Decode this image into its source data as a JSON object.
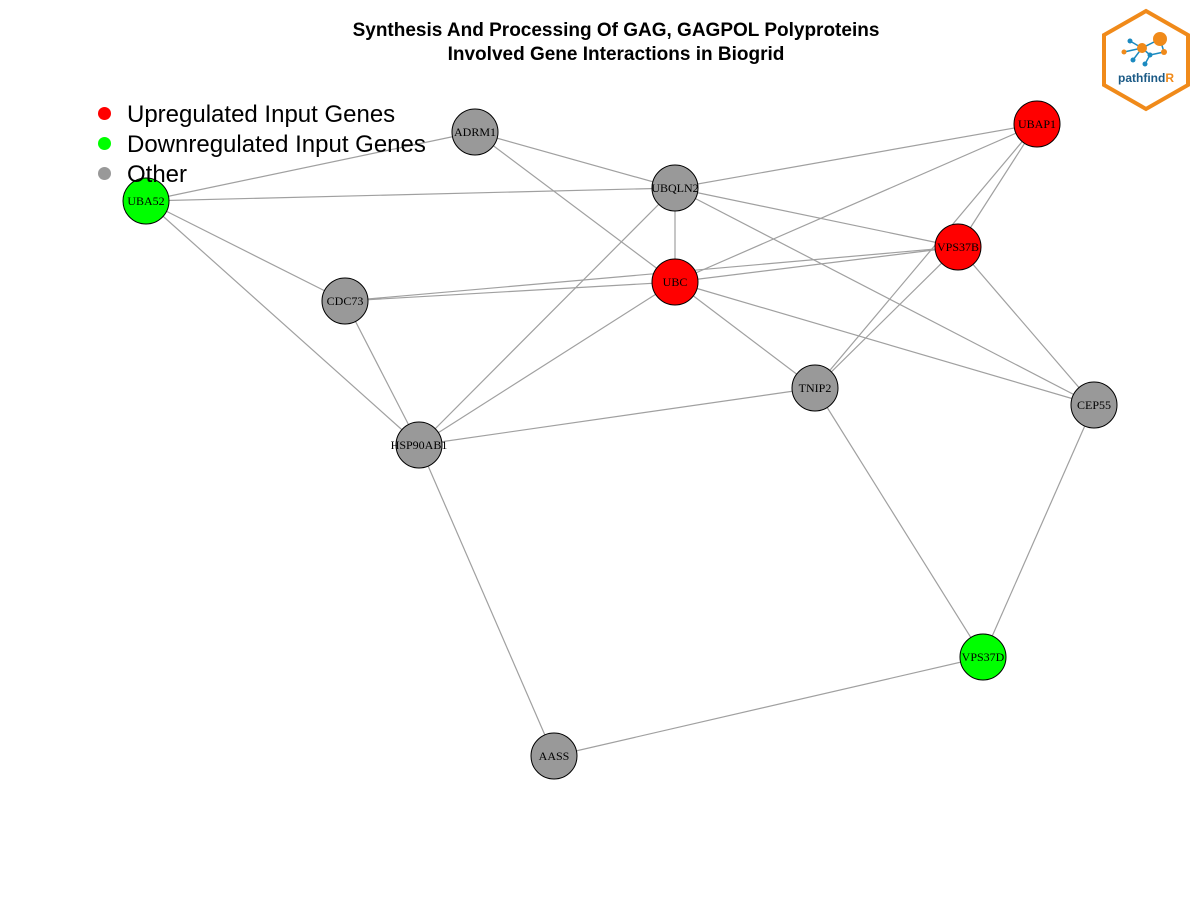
{
  "title": {
    "line1": "Synthesis And Processing Of GAG, GAGPOL Polyproteins",
    "line2": "Involved Gene Interactions in Biogrid"
  },
  "legend": [
    {
      "label": "Upregulated Input Genes",
      "color": "#ff0000"
    },
    {
      "label": "Downregulated Input Genes",
      "color": "#00ff00"
    },
    {
      "label": "Other",
      "color": "#999999"
    }
  ],
  "logo": {
    "text_main": "pathfind",
    "text_accent": "R",
    "border_color": "#f08a1a",
    "text_color": "#1b5a86"
  },
  "colors": {
    "up": "#ff0000",
    "down": "#00ff00",
    "other": "#999999",
    "edge": "#a0a0a0"
  },
  "nodes": [
    {
      "id": "ADRM1",
      "label": "ADRM1",
      "group": "other"
    },
    {
      "id": "UBAP1",
      "label": "UBAP1",
      "group": "up"
    },
    {
      "id": "UBA52",
      "label": "UBA52",
      "group": "down"
    },
    {
      "id": "UBQLN2",
      "label": "UBQLN2",
      "group": "other"
    },
    {
      "id": "VPS37B",
      "label": "VPS37B",
      "group": "up"
    },
    {
      "id": "UBC",
      "label": "UBC",
      "group": "up"
    },
    {
      "id": "CDC73",
      "label": "CDC73",
      "group": "other"
    },
    {
      "id": "TNIP2",
      "label": "TNIP2",
      "group": "other"
    },
    {
      "id": "CEP55",
      "label": "CEP55",
      "group": "other"
    },
    {
      "id": "HSP90AB1",
      "label": "HSP90AB1",
      "group": "other"
    },
    {
      "id": "VPS37D",
      "label": "VPS37D",
      "group": "down"
    },
    {
      "id": "AASS",
      "label": "AASS",
      "group": "other"
    }
  ],
  "edges": [
    [
      "ADRM1",
      "UBA52"
    ],
    [
      "ADRM1",
      "UBQLN2"
    ],
    [
      "ADRM1",
      "UBC"
    ],
    [
      "UBA52",
      "UBQLN2"
    ],
    [
      "UBA52",
      "CDC73"
    ],
    [
      "UBA52",
      "HSP90AB1"
    ],
    [
      "UBQLN2",
      "UBAP1"
    ],
    [
      "UBQLN2",
      "UBC"
    ],
    [
      "UBQLN2",
      "VPS37B"
    ],
    [
      "UBQLN2",
      "CEP55"
    ],
    [
      "UBQLN2",
      "HSP90AB1"
    ],
    [
      "UBAP1",
      "UBC"
    ],
    [
      "UBAP1",
      "VPS37B"
    ],
    [
      "UBAP1",
      "TNIP2"
    ],
    [
      "VPS37B",
      "UBC"
    ],
    [
      "VPS37B",
      "CDC73"
    ],
    [
      "VPS37B",
      "TNIP2"
    ],
    [
      "VPS37B",
      "CEP55"
    ],
    [
      "UBC",
      "CDC73"
    ],
    [
      "UBC",
      "TNIP2"
    ],
    [
      "UBC",
      "CEP55"
    ],
    [
      "UBC",
      "HSP90AB1"
    ],
    [
      "CDC73",
      "HSP90AB1"
    ],
    [
      "TNIP2",
      "HSP90AB1"
    ],
    [
      "TNIP2",
      "VPS37D"
    ],
    [
      "CEP55",
      "VPS37D"
    ],
    [
      "HSP90AB1",
      "AASS"
    ],
    [
      "VPS37D",
      "AASS"
    ]
  ]
}
